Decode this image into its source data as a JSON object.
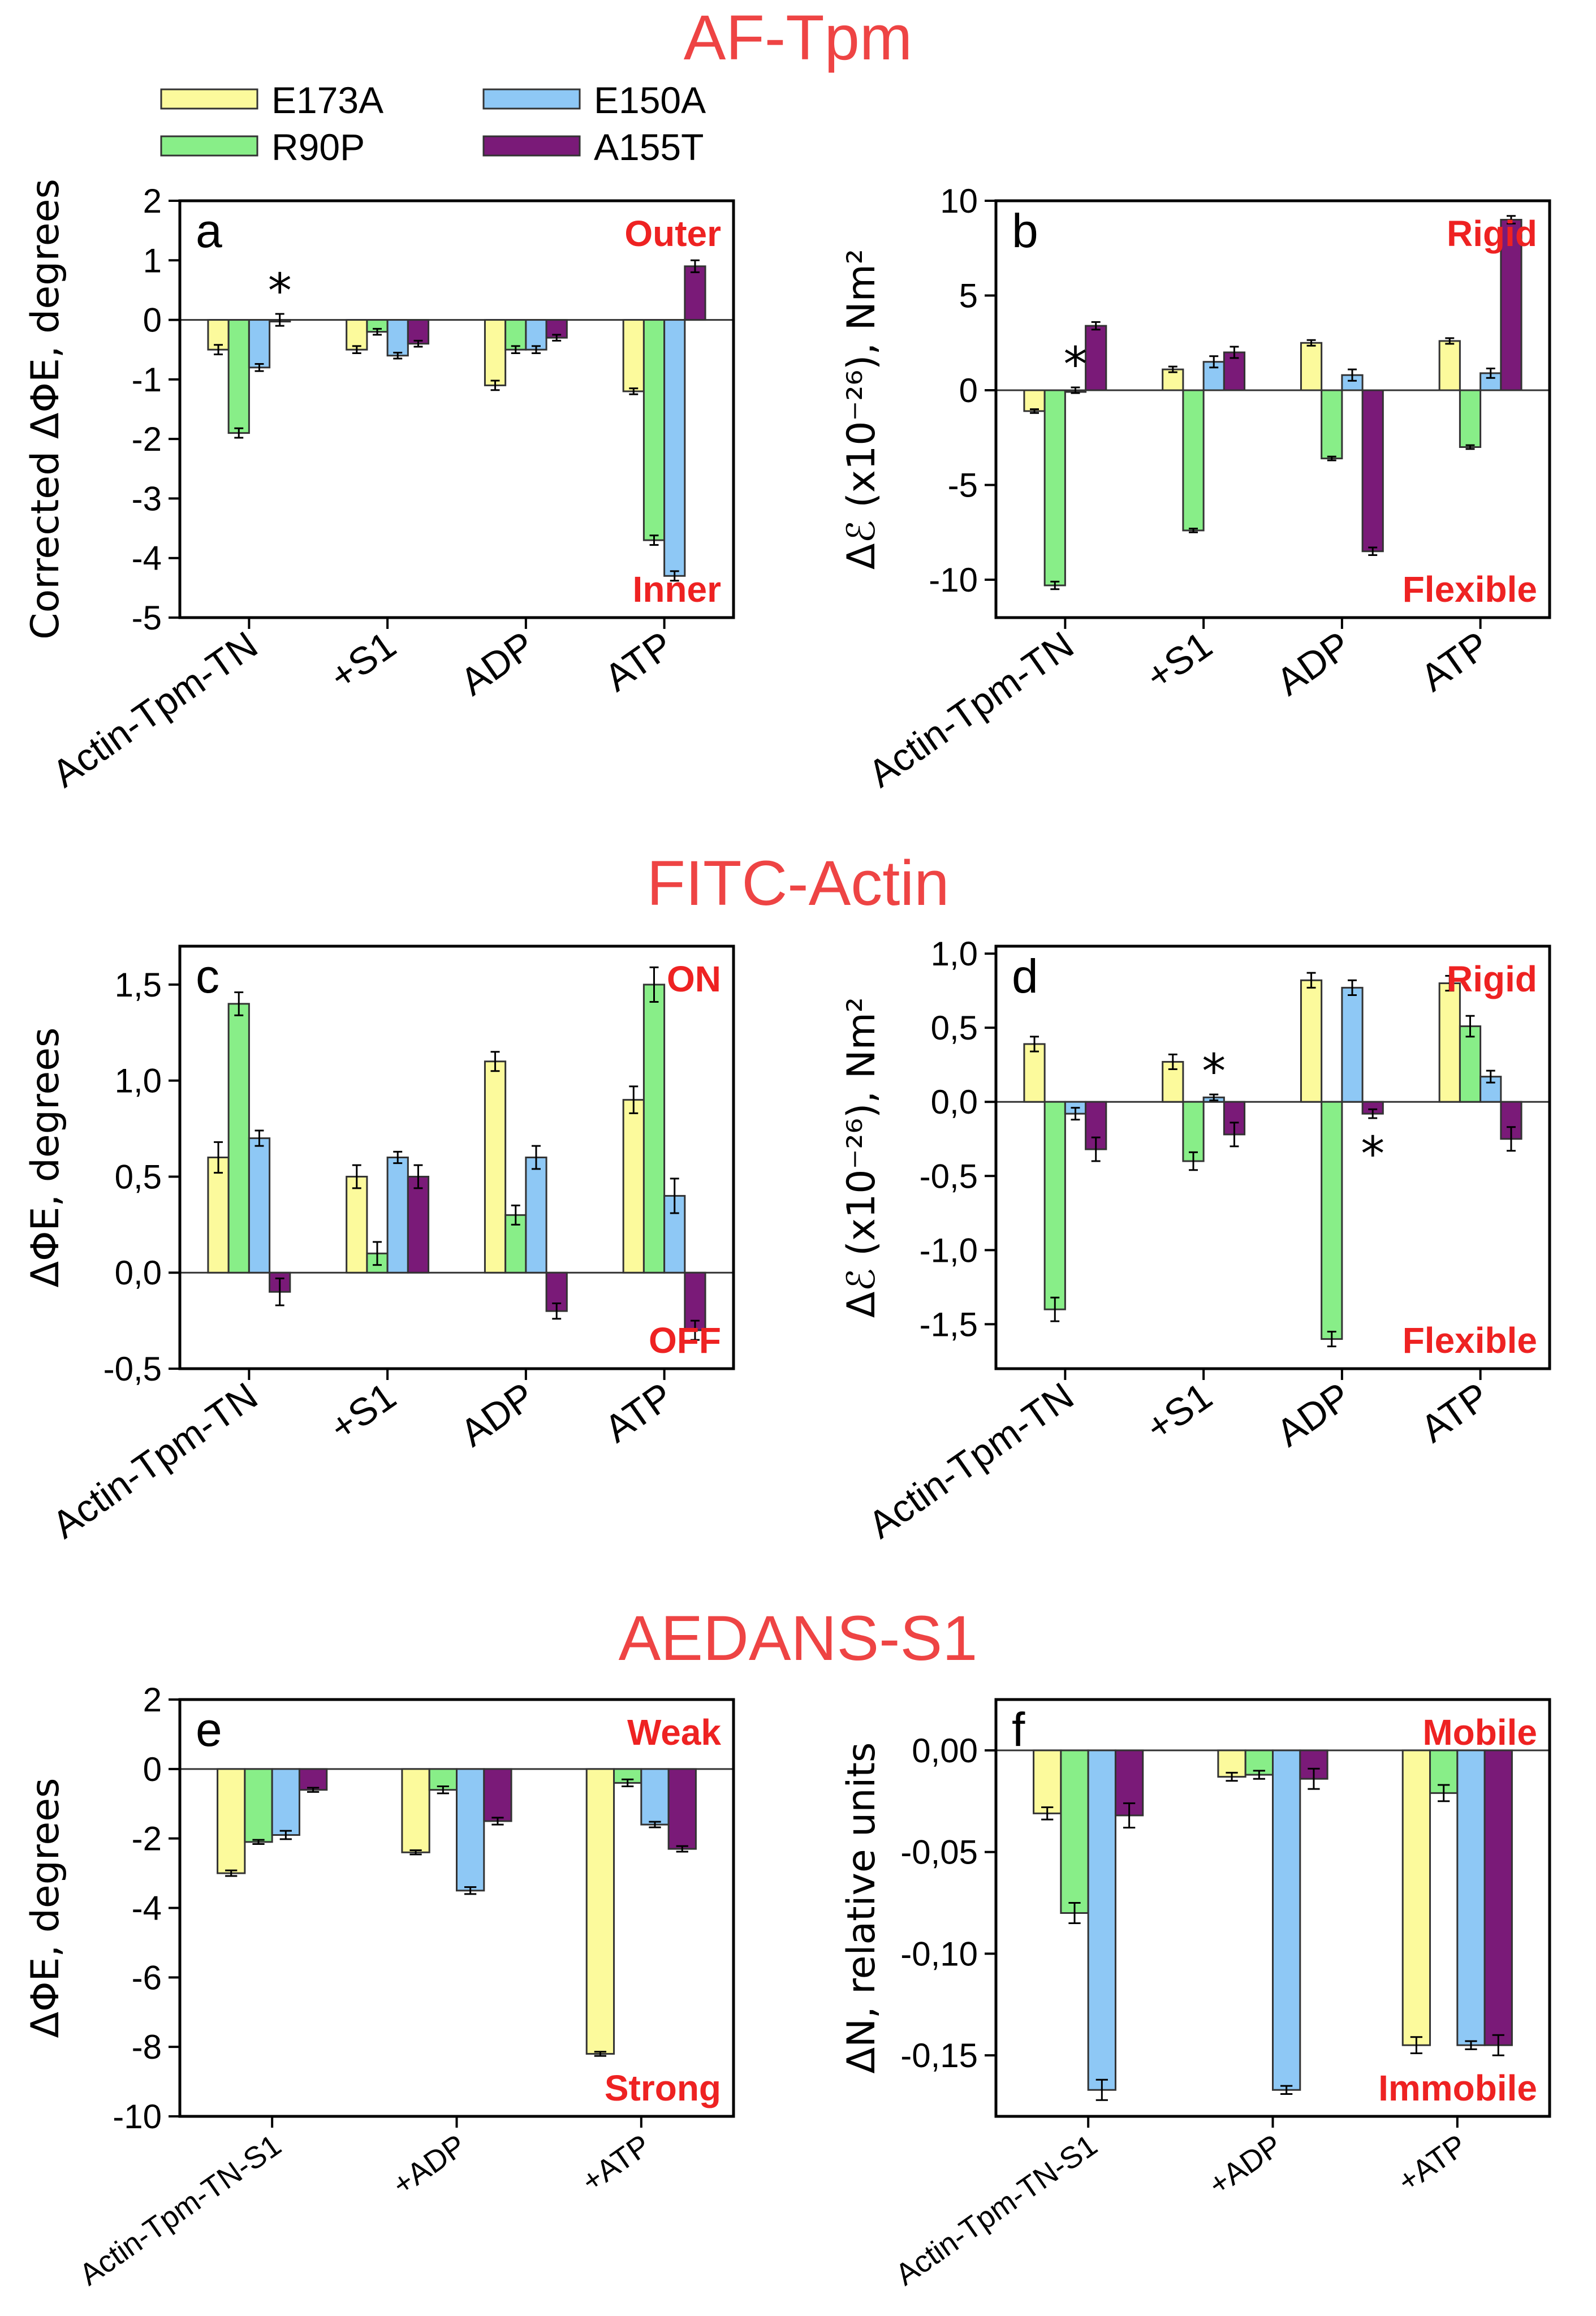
{
  "section_titles": {
    "top": "AF-Tpm",
    "middle": "FITC-Actin",
    "bottom": "AEDANS-S1"
  },
  "legend": [
    {
      "name": "E173A",
      "color": "#fcfa9c"
    },
    {
      "name": "R90P",
      "color": "#88ee88"
    },
    {
      "name": "E150A",
      "color": "#8ec8f5"
    },
    {
      "name": "A155T",
      "color": "#7a1a78"
    }
  ],
  "chart_data": [
    {
      "id": "a",
      "type": "bar",
      "panel_letter": "a",
      "ylabel": "Corrected ΔΦE, degrees",
      "ylim": [
        -5,
        2
      ],
      "yticks": [
        -5,
        -4,
        -3,
        -2,
        -1,
        0,
        1,
        2
      ],
      "ytick_labels": [
        "-5",
        "-4",
        "-3",
        "-2",
        "-1",
        "0",
        "1",
        "2"
      ],
      "categories": [
        "Actin-Tpm-TN",
        "+S1",
        "ADP",
        "ATP"
      ],
      "corner_top": "Outer",
      "corner_bottom": "Inner",
      "series": [
        {
          "name": "E173A",
          "values": [
            -0.5,
            -0.5,
            -1.1,
            -1.2
          ],
          "errors": [
            0.08,
            0.06,
            0.08,
            0.05
          ]
        },
        {
          "name": "R90P",
          "values": [
            -1.9,
            -0.2,
            -0.5,
            -3.7
          ],
          "errors": [
            0.08,
            0.05,
            0.06,
            0.08
          ]
        },
        {
          "name": "E150A",
          "values": [
            -0.8,
            -0.6,
            -0.5,
            -4.3
          ],
          "errors": [
            0.06,
            0.05,
            0.06,
            0.08
          ]
        },
        {
          "name": "A155T",
          "values": [
            0.0,
            -0.4,
            -0.3,
            0.9
          ],
          "errors": [
            0.1,
            0.05,
            0.05,
            0.1
          ]
        }
      ],
      "stars": [
        {
          "category": 0,
          "series": 3,
          "label": "*"
        }
      ]
    },
    {
      "id": "b",
      "type": "bar",
      "panel_letter": "b",
      "ylabel": "Δℰ (x10⁻²⁶), Nm²",
      "ylim": [
        -12,
        10
      ],
      "yticks": [
        -10,
        -5,
        0,
        5,
        10
      ],
      "ytick_labels": [
        "-10",
        "-5",
        "0",
        "5",
        "10"
      ],
      "categories": [
        "Actin-Tpm-TN",
        "+S1",
        "ADP",
        "ATP"
      ],
      "corner_top": "Rigid",
      "corner_bottom": "Flexible",
      "series": [
        {
          "name": "E173A",
          "values": [
            -1.1,
            1.1,
            2.5,
            2.6
          ],
          "errors": [
            0.1,
            0.15,
            0.15,
            0.15
          ]
        },
        {
          "name": "R90P",
          "values": [
            -10.3,
            -7.4,
            -3.6,
            -3.0
          ],
          "errors": [
            0.2,
            0.1,
            0.1,
            0.1
          ]
        },
        {
          "name": "E150A",
          "values": [
            0.0,
            1.5,
            0.8,
            0.9
          ],
          "errors": [
            0.15,
            0.3,
            0.3,
            0.25
          ]
        },
        {
          "name": "A155T",
          "values": [
            3.4,
            2.0,
            -8.5,
            9.0
          ],
          "errors": [
            0.2,
            0.3,
            0.2,
            0.2
          ]
        }
      ],
      "stars": [
        {
          "category": 0,
          "series": 2,
          "label": "*"
        }
      ]
    },
    {
      "id": "c",
      "type": "bar",
      "panel_letter": "c",
      "ylabel": "ΔΦE, degrees",
      "ylim": [
        -0.5,
        1.7
      ],
      "yticks": [
        -0.5,
        0.0,
        0.5,
        1.0,
        1.5
      ],
      "ytick_labels": [
        "-0,5",
        "0,0",
        "0,5",
        "1,0",
        "1,5"
      ],
      "categories": [
        "Actin-Tpm-TN",
        "+S1",
        "ADP",
        "ATP"
      ],
      "corner_top": "ON",
      "corner_bottom": "OFF",
      "series": [
        {
          "name": "E173A",
          "values": [
            0.6,
            0.5,
            1.1,
            0.9
          ],
          "errors": [
            0.08,
            0.06,
            0.05,
            0.07
          ]
        },
        {
          "name": "R90P",
          "values": [
            1.4,
            0.1,
            0.3,
            1.5
          ],
          "errors": [
            0.06,
            0.06,
            0.05,
            0.09
          ]
        },
        {
          "name": "E150A",
          "values": [
            0.7,
            0.6,
            0.6,
            0.4
          ],
          "errors": [
            0.04,
            0.03,
            0.06,
            0.09
          ]
        },
        {
          "name": "A155T",
          "values": [
            -0.1,
            0.5,
            -0.2,
            -0.3
          ],
          "errors": [
            0.07,
            0.06,
            0.04,
            0.05
          ]
        }
      ],
      "stars": []
    },
    {
      "id": "d",
      "type": "bar",
      "panel_letter": "d",
      "ylabel": "Δℰ (x10⁻²⁶), Nm²",
      "ylim": [
        -1.8,
        1.05
      ],
      "yticks": [
        -1.5,
        -1.0,
        -0.5,
        0.0,
        0.5,
        1.0
      ],
      "ytick_labels": [
        "-1,5",
        "-1,0",
        "-0,5",
        "0,0",
        "0,5",
        "1,0"
      ],
      "categories": [
        "Actin-Tpm-TN",
        "+S1",
        "ADP",
        "ATP"
      ],
      "corner_top": "Rigid",
      "corner_bottom": "Flexible",
      "series": [
        {
          "name": "E173A",
          "values": [
            0.39,
            0.27,
            0.82,
            0.8
          ],
          "errors": [
            0.05,
            0.05,
            0.05,
            0.05
          ]
        },
        {
          "name": "R90P",
          "values": [
            -1.4,
            -0.4,
            -1.6,
            0.51
          ],
          "errors": [
            0.08,
            0.06,
            0.05,
            0.07
          ]
        },
        {
          "name": "E150A",
          "values": [
            -0.08,
            0.03,
            0.77,
            0.17
          ],
          "errors": [
            0.04,
            0.02,
            0.05,
            0.04
          ]
        },
        {
          "name": "A155T",
          "values": [
            -0.32,
            -0.22,
            -0.08,
            -0.25
          ],
          "errors": [
            0.08,
            0.08,
            0.03,
            0.08
          ]
        }
      ],
      "stars": [
        {
          "category": 1,
          "series": 2,
          "label": "*"
        },
        {
          "category": 2,
          "series": 3,
          "label": "*",
          "below": true
        }
      ]
    },
    {
      "id": "e",
      "type": "bar",
      "panel_letter": "e",
      "ylabel": "ΔΦE, degrees",
      "ylim": [
        -10,
        2
      ],
      "yticks": [
        -10,
        -8,
        -6,
        -4,
        -2,
        0,
        2
      ],
      "ytick_labels": [
        "-10",
        "-8",
        "-6",
        "-4",
        "-2",
        "0",
        "2"
      ],
      "categories": [
        "Actin-Tpm-TN-S1",
        "+ADP",
        "+ATP"
      ],
      "corner_top": "Weak",
      "corner_bottom": "Strong",
      "series": [
        {
          "name": "E173A",
          "values": [
            -3.0,
            -2.4,
            -8.2
          ],
          "errors": [
            0.08,
            0.06,
            0.06
          ]
        },
        {
          "name": "R90P",
          "values": [
            -2.1,
            -0.6,
            -0.4
          ],
          "errors": [
            0.06,
            0.1,
            0.1
          ]
        },
        {
          "name": "E150A",
          "values": [
            -1.9,
            -3.5,
            -1.6
          ],
          "errors": [
            0.12,
            0.1,
            0.08
          ]
        },
        {
          "name": "A155T",
          "values": [
            -0.6,
            -1.5,
            -2.3
          ],
          "errors": [
            0.06,
            0.1,
            0.08
          ]
        }
      ],
      "stars": []
    },
    {
      "id": "f",
      "type": "bar",
      "panel_letter": "f",
      "ylabel": "ΔN, relative units",
      "ylim": [
        -0.18,
        0.025
      ],
      "yticks": [
        -0.15,
        -0.1,
        -0.05,
        0.0
      ],
      "ytick_labels": [
        "-0,15",
        "-0,10",
        "-0,05",
        "0,00"
      ],
      "categories": [
        "Actin-Tpm-TN-S1",
        "+ADP",
        "+ATP"
      ],
      "corner_top": "Mobile",
      "corner_bottom": "Immobile",
      "series": [
        {
          "name": "E173A",
          "values": [
            -0.031,
            -0.013,
            -0.145
          ],
          "errors": [
            0.003,
            0.002,
            0.004
          ]
        },
        {
          "name": "R90P",
          "values": [
            -0.08,
            -0.012,
            -0.021
          ],
          "errors": [
            0.005,
            0.002,
            0.004
          ]
        },
        {
          "name": "E150A",
          "values": [
            -0.167,
            -0.167,
            -0.145
          ],
          "errors": [
            0.005,
            0.002,
            0.002
          ]
        },
        {
          "name": "A155T",
          "values": [
            -0.032,
            -0.014,
            -0.145
          ],
          "errors": [
            0.006,
            0.005,
            0.005
          ]
        }
      ],
      "stars": []
    }
  ]
}
